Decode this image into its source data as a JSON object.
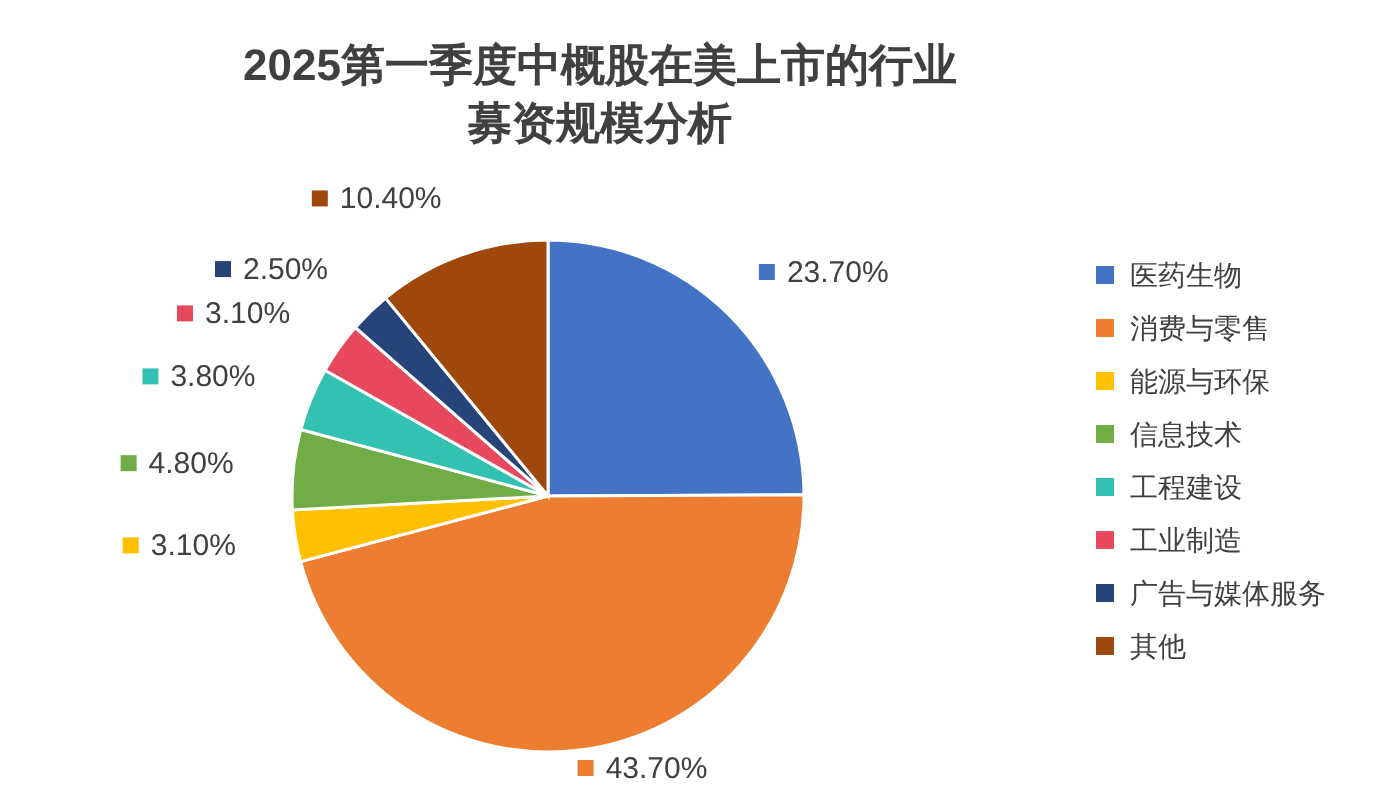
{
  "chart_data": {
    "type": "pie",
    "title": "2025第一季度中概股在美上市的行业募资规模分析",
    "categories": [
      "医药生物",
      "消费与零售",
      "能源与环保",
      "信息技术",
      "工程建设",
      "工业制造",
      "广告与媒体服务",
      "其他"
    ],
    "values": [
      23.7,
      43.7,
      3.1,
      4.8,
      3.8,
      3.1,
      2.5,
      10.4
    ],
    "value_labels": [
      "23.70%",
      "43.70%",
      "3.10%",
      "4.80%",
      "3.80%",
      "3.10%",
      "2.50%",
      "10.40%"
    ],
    "colors": [
      "#4472c4",
      "#ed7d31",
      "#ffc000",
      "#70ad47",
      "#33c2b2",
      "#e8485d",
      "#264478",
      "#9e480e"
    ],
    "legend": "right"
  }
}
